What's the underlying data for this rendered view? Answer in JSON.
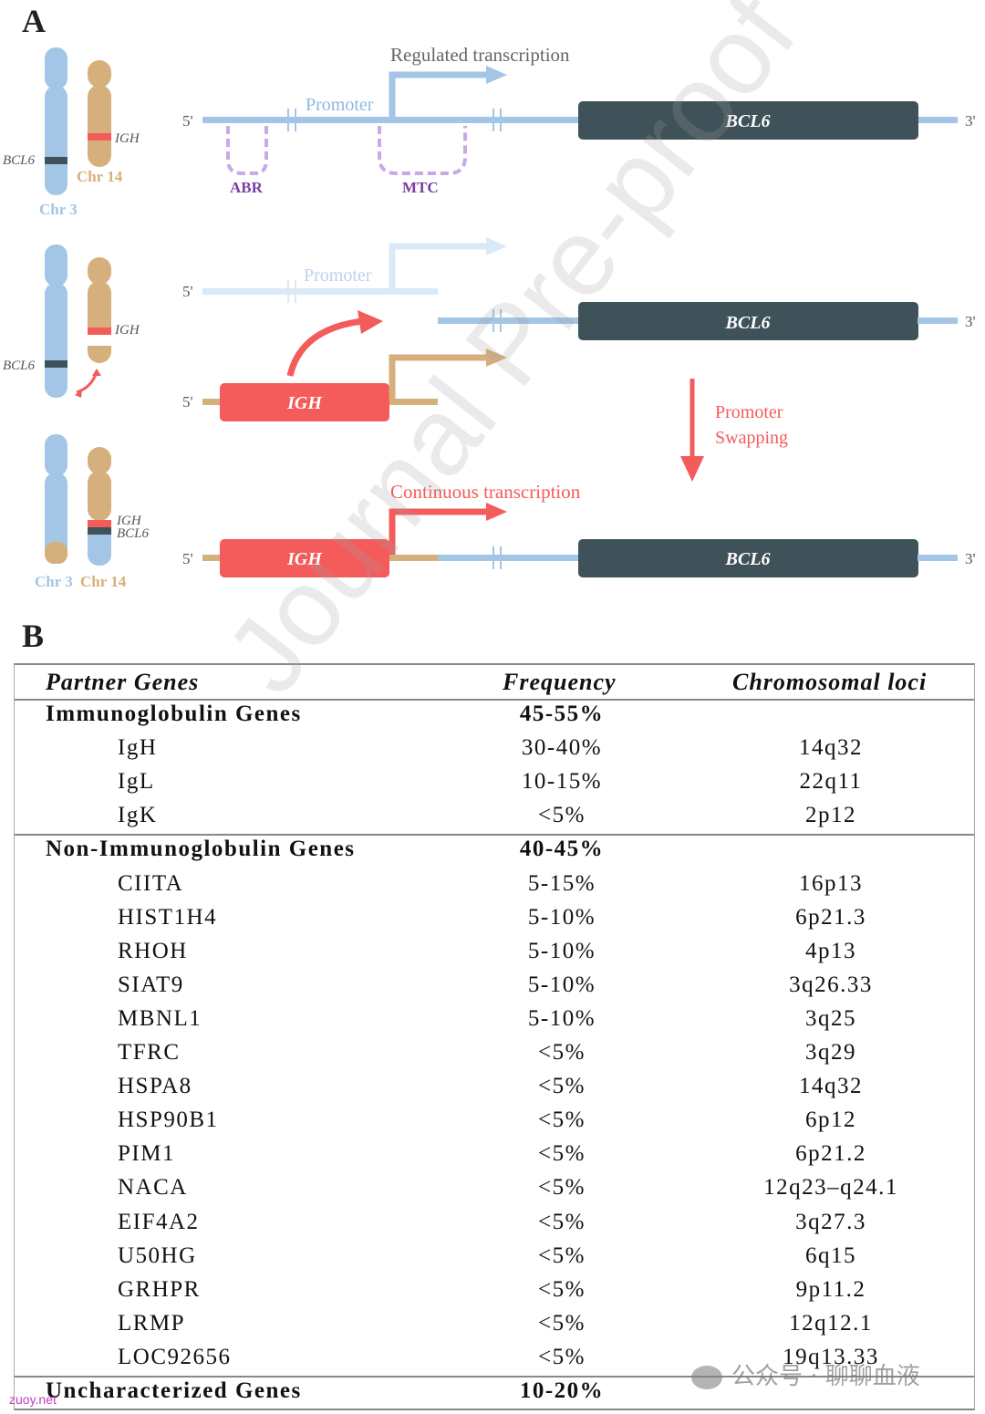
{
  "panel_a": {
    "label": "A",
    "chromosomes": {
      "chr3": "Chr 3",
      "chr14": "Chr 14",
      "chr3_bottom": "Chr 3",
      "chr14_bottom": "Chr 14",
      "bcl6_mark": "BCL6",
      "igh_mark": "IGH",
      "bcl6_mark_2": "BCL6",
      "igh_mark_2": "IGH",
      "igh_mark_3": "IGH",
      "bcl6_mark_3": "BCL6"
    },
    "top": {
      "five": "5'",
      "three": "3'",
      "regulated": "Regulated transcription",
      "promoter": "Promoter",
      "gene": "BCL6",
      "abr": "ABR",
      "mtc": "MTC"
    },
    "middle": {
      "five_a": "5'",
      "five_b": "5'",
      "three": "3'",
      "promoter": "Promoter",
      "gene": "BCL6",
      "igh": "IGH",
      "swap_1": "Promoter",
      "swap_2": "Swapping"
    },
    "bottom": {
      "five": "5'",
      "three": "3'",
      "continuous": "Continuous transcription",
      "igh": "IGH",
      "gene": "BCL6"
    },
    "colors": {
      "blue": "#a3c5e6",
      "tan": "#d6b07c",
      "red": "#f45b5b",
      "dark": "#3f5259",
      "purple": "#c9a8e6",
      "purple_text": "#7b3fa6",
      "light_blue": "#dbe8f5"
    }
  },
  "panel_b": {
    "label": "B",
    "headers": {
      "genes": "Partner Genes",
      "frequency": "Frequency",
      "loci": "Chromosomal loci"
    },
    "sections": [
      {
        "category": "Immunoglobulin Genes",
        "frequency": "45-55%",
        "rows": [
          {
            "gene": "IgH",
            "frequency": "30-40%",
            "loci": "14q32"
          },
          {
            "gene": "IgL",
            "frequency": "10-15%",
            "loci": "22q11"
          },
          {
            "gene": "IgK",
            "frequency": "<5%",
            "loci": "2p12"
          }
        ]
      },
      {
        "category": "Non-Immunoglobulin Genes",
        "frequency": "40-45%",
        "rows": [
          {
            "gene": "CIITA",
            "frequency": "5-15%",
            "loci": "16p13"
          },
          {
            "gene": "HIST1H4",
            "frequency": "5-10%",
            "loci": "6p21.3"
          },
          {
            "gene": "RHOH",
            "frequency": "5-10%",
            "loci": "4p13"
          },
          {
            "gene": "SIAT9",
            "frequency": "5-10%",
            "loci": "3q26.33"
          },
          {
            "gene": "MBNL1",
            "frequency": "5-10%",
            "loci": "3q25"
          },
          {
            "gene": "TFRC",
            "frequency": "<5%",
            "loci": "3q29"
          },
          {
            "gene": "HSPA8",
            "frequency": "<5%",
            "loci": "14q32"
          },
          {
            "gene": "HSP90B1",
            "frequency": "<5%",
            "loci": "6p12"
          },
          {
            "gene": "PIM1",
            "frequency": "<5%",
            "loci": "6p21.2"
          },
          {
            "gene": "NACA",
            "frequency": "<5%",
            "loci": "12q23–q24.1"
          },
          {
            "gene": "EIF4A2",
            "frequency": "<5%",
            "loci": "3q27.3"
          },
          {
            "gene": "U50HG",
            "frequency": "<5%",
            "loci": "6q15"
          },
          {
            "gene": "GRHPR",
            "frequency": "<5%",
            "loci": "9p11.2"
          },
          {
            "gene": "LRMP",
            "frequency": "<5%",
            "loci": "12q12.1"
          },
          {
            "gene": "LOC92656",
            "frequency": "<5%",
            "loci": "19q13.33"
          }
        ]
      },
      {
        "category": "Uncharacterized Genes",
        "frequency": "10-20%",
        "rows": []
      }
    ]
  },
  "overlays": {
    "watermark": "Journal Pre-proof",
    "wechat": "公众号 · 聊聊血液",
    "site": "zuoy.net"
  }
}
